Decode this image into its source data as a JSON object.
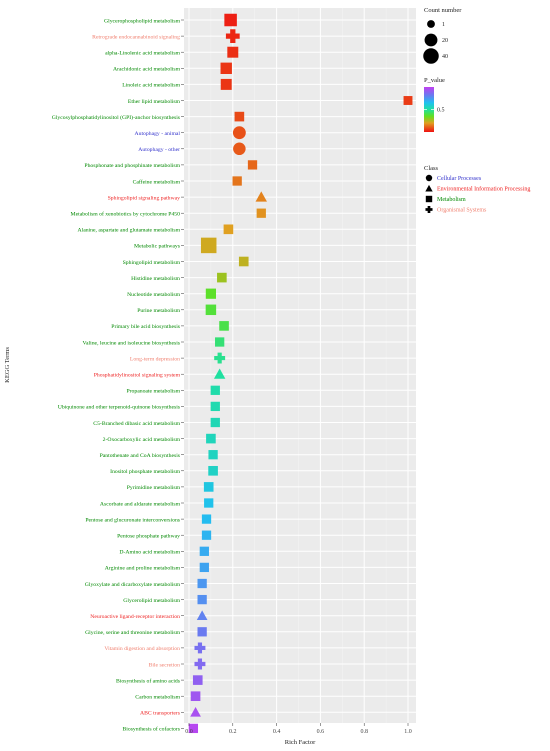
{
  "chart_data": {
    "type": "scatter",
    "xlabel": "Rich Factor",
    "ylabel": "KEGG Terms",
    "xlim": [
      -0.05,
      1.05
    ],
    "x_ticks": [
      "0.0",
      "0.2",
      "0.4",
      "0.6",
      "0.8",
      "1.0"
    ],
    "grid": true,
    "legend_placement": "right",
    "colors": {
      "panel_bg": "#ebebeb",
      "grid": "#ffffff",
      "Cellular Processes": "#3333cc",
      "Environmental Information Processing": "#ee2222",
      "Metabolism": "#008800",
      "Organismal Systems": "#f08070"
    },
    "legend": {
      "count_title": "Count number",
      "count_sizes": [
        1,
        20,
        40
      ],
      "pvalue_title": "P_value",
      "pvalue_ticks": [
        "0.5"
      ],
      "class_title": "Class",
      "classes": [
        {
          "name": "Cellular Processes",
          "shape": "circle"
        },
        {
          "name": "Environmental Information Processing",
          "shape": "triangle"
        },
        {
          "name": "Metabolism",
          "shape": "square"
        },
        {
          "name": "Organismal Systems",
          "shape": "cross"
        }
      ]
    },
    "points": [
      {
        "term": "Glycerophospholipid metabolism",
        "class": "Metabolism",
        "x": 0.19,
        "p": 0.02,
        "count": 18
      },
      {
        "term": "Retrograde endocannabinoid signaling",
        "class": "Organismal Systems",
        "x": 0.2,
        "p": 0.03,
        "count": 18
      },
      {
        "term": "alpha-Linolenic acid metabolism",
        "class": "Metabolism",
        "x": 0.2,
        "p": 0.04,
        "count": 10
      },
      {
        "term": "Arachidonic acid metabolism",
        "class": "Metabolism",
        "x": 0.17,
        "p": 0.05,
        "count": 12
      },
      {
        "term": "Linoleic acid metabolism",
        "class": "Metabolism",
        "x": 0.17,
        "p": 0.05,
        "count": 10
      },
      {
        "term": "Ether lipid metabolism",
        "class": "Metabolism",
        "x": 1.0,
        "p": 0.06,
        "count": 3
      },
      {
        "term": "Glycosylphosphatidylinositol (GPI)-anchor biosynthesis",
        "class": "Metabolism",
        "x": 0.23,
        "p": 0.08,
        "count": 5
      },
      {
        "term": "Autophagy - animal",
        "class": "Cellular Processes",
        "x": 0.23,
        "p": 0.09,
        "count": 20
      },
      {
        "term": "Autophagy - other",
        "class": "Cellular Processes",
        "x": 0.23,
        "p": 0.1,
        "count": 18
      },
      {
        "term": "Phosphonate and phosphinate metabolism",
        "class": "Metabolism",
        "x": 0.29,
        "p": 0.12,
        "count": 4
      },
      {
        "term": "Caffeine metabolism",
        "class": "Metabolism",
        "x": 0.22,
        "p": 0.14,
        "count": 4
      },
      {
        "term": "Sphingolipid signaling pathway",
        "class": "Environmental Information Processing",
        "x": 0.33,
        "p": 0.16,
        "count": 6
      },
      {
        "term": "Metabolism of xenobiotics by cytochrome P450",
        "class": "Metabolism",
        "x": 0.33,
        "p": 0.18,
        "count": 4
      },
      {
        "term": "Alanine, aspartate and glutamate metabolism",
        "class": "Metabolism",
        "x": 0.18,
        "p": 0.2,
        "count": 5
      },
      {
        "term": "Metabolic pathways",
        "class": "Metabolism",
        "x": 0.09,
        "p": 0.22,
        "count": 40
      },
      {
        "term": "Sphingolipid metabolism",
        "class": "Metabolism",
        "x": 0.25,
        "p": 0.24,
        "count": 5
      },
      {
        "term": "Histidine metabolism",
        "class": "Metabolism",
        "x": 0.15,
        "p": 0.28,
        "count": 5
      },
      {
        "term": "Nucleotide metabolism",
        "class": "Metabolism",
        "x": 0.1,
        "p": 0.36,
        "count": 7
      },
      {
        "term": "Purine metabolism",
        "class": "Metabolism",
        "x": 0.1,
        "p": 0.38,
        "count": 8
      },
      {
        "term": "Primary bile acid biosynthesis",
        "class": "Metabolism",
        "x": 0.16,
        "p": 0.4,
        "count": 5
      },
      {
        "term": "Valine, leucine and isoleucine biosynthesis",
        "class": "Metabolism",
        "x": 0.14,
        "p": 0.45,
        "count": 4
      },
      {
        "term": "Long-term depression",
        "class": "Organismal Systems",
        "x": 0.14,
        "p": 0.48,
        "count": 6
      },
      {
        "term": "Phosphatidylinositol signaling system",
        "class": "Environmental Information Processing",
        "x": 0.14,
        "p": 0.5,
        "count": 6
      },
      {
        "term": "Propanoate metabolism",
        "class": "Metabolism",
        "x": 0.12,
        "p": 0.52,
        "count": 4
      },
      {
        "term": "Ubiquinone and other terpenoid-quinone biosynthesis",
        "class": "Metabolism",
        "x": 0.12,
        "p": 0.53,
        "count": 4
      },
      {
        "term": "C5-Branched dibasic acid metabolism",
        "class": "Metabolism",
        "x": 0.12,
        "p": 0.54,
        "count": 4
      },
      {
        "term": "2-Oxocarboxylic acid metabolism",
        "class": "Metabolism",
        "x": 0.1,
        "p": 0.55,
        "count": 5
      },
      {
        "term": "Pantothenate and CoA biosynthesis",
        "class": "Metabolism",
        "x": 0.11,
        "p": 0.56,
        "count": 4
      },
      {
        "term": "Inositol phosphate metabolism",
        "class": "Metabolism",
        "x": 0.11,
        "p": 0.57,
        "count": 5
      },
      {
        "term": "Pyrimidine metabolism",
        "class": "Metabolism",
        "x": 0.09,
        "p": 0.62,
        "count": 5
      },
      {
        "term": "Ascorbate and aldarate metabolism",
        "class": "Metabolism",
        "x": 0.09,
        "p": 0.64,
        "count": 4
      },
      {
        "term": "Pentose and glucuronate interconversions",
        "class": "Metabolism",
        "x": 0.08,
        "p": 0.66,
        "count": 4
      },
      {
        "term": "Pentose phosphate pathway",
        "class": "Metabolism",
        "x": 0.08,
        "p": 0.68,
        "count": 4
      },
      {
        "term": "D-Amino acid metabolism",
        "class": "Metabolism",
        "x": 0.07,
        "p": 0.7,
        "count": 4
      },
      {
        "term": "Arginine and proline metabolism",
        "class": "Metabolism",
        "x": 0.07,
        "p": 0.72,
        "count": 4
      },
      {
        "term": "Glyoxylate and dicarboxylate metabolism",
        "class": "Metabolism",
        "x": 0.06,
        "p": 0.75,
        "count": 4
      },
      {
        "term": "Glycerolipid metabolism",
        "class": "Metabolism",
        "x": 0.06,
        "p": 0.77,
        "count": 4
      },
      {
        "term": "Neuroactive ligand-receptor interaction",
        "class": "Environmental Information Processing",
        "x": 0.06,
        "p": 0.8,
        "count": 4
      },
      {
        "term": "Glycine, serine and threonine metabolism",
        "class": "Metabolism",
        "x": 0.06,
        "p": 0.82,
        "count": 4
      },
      {
        "term": "Vitamin digestion and absorption",
        "class": "Organismal Systems",
        "x": 0.05,
        "p": 0.85,
        "count": 6
      },
      {
        "term": "Bile secretion",
        "class": "Organismal Systems",
        "x": 0.05,
        "p": 0.87,
        "count": 6
      },
      {
        "term": "Biosynthesis of amino acids",
        "class": "Metabolism",
        "x": 0.04,
        "p": 0.9,
        "count": 5
      },
      {
        "term": "Carbon metabolism",
        "class": "Metabolism",
        "x": 0.03,
        "p": 0.93,
        "count": 5
      },
      {
        "term": "ABC transporters",
        "class": "Environmental Information Processing",
        "x": 0.03,
        "p": 0.95,
        "count": 4
      },
      {
        "term": "Biosynthesis of cofactors",
        "class": "Metabolism",
        "x": 0.02,
        "p": 0.98,
        "count": 4
      }
    ]
  }
}
